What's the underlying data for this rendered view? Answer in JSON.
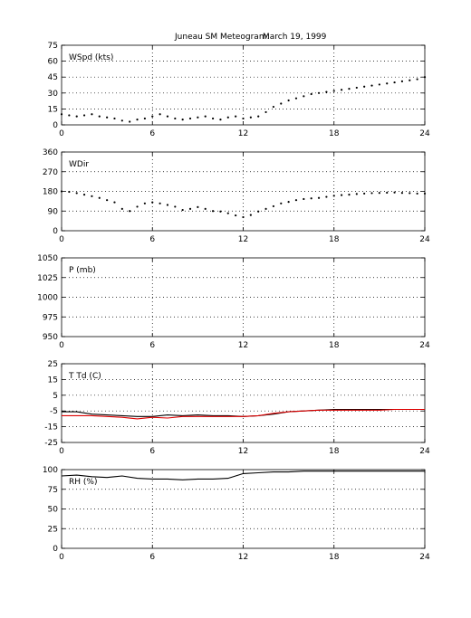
{
  "title": {
    "station": "Juneau SM Meteogram:",
    "date": "March 19, 1999"
  },
  "chart_data": [
    {
      "type": "scatter",
      "panel_label": "WSpd (kts)",
      "xlim": [
        0,
        24
      ],
      "ylim": [
        0,
        75
      ],
      "xticks": [
        0,
        6,
        12,
        18,
        24
      ],
      "yticks": [
        0,
        15,
        30,
        45,
        60,
        75
      ],
      "grid": true,
      "series": [
        {
          "color": "#000000",
          "points": [
            [
              0,
              10
            ],
            [
              0.5,
              9
            ],
            [
              1,
              8
            ],
            [
              1.5,
              9
            ],
            [
              2,
              10
            ],
            [
              2.5,
              8
            ],
            [
              3,
              7
            ],
            [
              3.5,
              6
            ],
            [
              4,
              4
            ],
            [
              4.5,
              3
            ],
            [
              5,
              5
            ],
            [
              5.5,
              6
            ],
            [
              6,
              8
            ],
            [
              6.5,
              10
            ],
            [
              7,
              8
            ],
            [
              7.5,
              6
            ],
            [
              8,
              5
            ],
            [
              8.5,
              6
            ],
            [
              9,
              7
            ],
            [
              9.5,
              8
            ],
            [
              10,
              6
            ],
            [
              10.5,
              5
            ],
            [
              11,
              7
            ],
            [
              11.5,
              8
            ],
            [
              12,
              6
            ],
            [
              12.5,
              7
            ],
            [
              13,
              8
            ],
            [
              13.5,
              12
            ],
            [
              14,
              17
            ],
            [
              14.5,
              20
            ],
            [
              15,
              23
            ],
            [
              15.5,
              25
            ],
            [
              16,
              27
            ],
            [
              16.5,
              29
            ],
            [
              17,
              30
            ],
            [
              17.5,
              31
            ],
            [
              18,
              32
            ],
            [
              18.5,
              33
            ],
            [
              19,
              34
            ],
            [
              19.5,
              35
            ],
            [
              20,
              36
            ],
            [
              20.5,
              37
            ],
            [
              21,
              38
            ],
            [
              21.5,
              39
            ],
            [
              22,
              40
            ],
            [
              22.5,
              41
            ],
            [
              23,
              42
            ],
            [
              23.5,
              43
            ],
            [
              24,
              45
            ]
          ]
        }
      ]
    },
    {
      "type": "scatter",
      "panel_label": "WDir",
      "xlim": [
        0,
        24
      ],
      "ylim": [
        0,
        360
      ],
      "xticks": [
        0,
        6,
        12,
        18,
        24
      ],
      "yticks": [
        0,
        90,
        180,
        270,
        360
      ],
      "grid": true,
      "series": [
        {
          "color": "#000000",
          "points": [
            [
              0,
              180
            ],
            [
              0.5,
              178
            ],
            [
              1,
              172
            ],
            [
              1.5,
              165
            ],
            [
              2,
              158
            ],
            [
              2.5,
              150
            ],
            [
              3,
              140
            ],
            [
              3.5,
              130
            ],
            [
              4,
              100
            ],
            [
              4.5,
              90
            ],
            [
              5,
              110
            ],
            [
              5.5,
              125
            ],
            [
              6,
              130
            ],
            [
              6.5,
              125
            ],
            [
              7,
              118
            ],
            [
              7.5,
              110
            ],
            [
              8,
              95
            ],
            [
              8.5,
              100
            ],
            [
              9,
              108
            ],
            [
              9.5,
              100
            ],
            [
              10,
              90
            ],
            [
              10.5,
              88
            ],
            [
              11,
              80
            ],
            [
              11.5,
              70
            ],
            [
              12,
              62
            ],
            [
              12.5,
              72
            ],
            [
              13,
              88
            ],
            [
              13.5,
              100
            ],
            [
              14,
              112
            ],
            [
              14.5,
              125
            ],
            [
              15,
              132
            ],
            [
              15.5,
              140
            ],
            [
              16,
              145
            ],
            [
              16.5,
              148
            ],
            [
              17,
              150
            ],
            [
              17.5,
              155
            ],
            [
              18,
              160
            ],
            [
              18.5,
              163
            ],
            [
              19,
              165
            ],
            [
              19.5,
              168
            ],
            [
              20,
              170
            ],
            [
              20.5,
              172
            ],
            [
              21,
              173
            ],
            [
              21.5,
              174
            ],
            [
              22,
              175
            ],
            [
              22.5,
              173
            ],
            [
              23,
              172
            ],
            [
              23.5,
              170
            ],
            [
              24,
              170
            ]
          ]
        }
      ]
    },
    {
      "type": "line",
      "panel_label": "P (mb)",
      "xlim": [
        0,
        24
      ],
      "ylim": [
        950,
        1050
      ],
      "xticks": [
        0,
        6,
        12,
        18,
        24
      ],
      "yticks": [
        950,
        975,
        1000,
        1025,
        1050
      ],
      "grid": true,
      "series": []
    },
    {
      "type": "line",
      "panel_label": "T Td (C)",
      "xlim": [
        0,
        24
      ],
      "ylim": [
        -25,
        25
      ],
      "xticks": [
        0,
        6,
        12,
        18,
        24
      ],
      "yticks": [
        -25,
        -15,
        -5,
        5,
        15,
        25
      ],
      "grid": true,
      "series": [
        {
          "color": "#000000",
          "points": [
            [
              0,
              -5.5
            ],
            [
              1,
              -5.5
            ],
            [
              2,
              -7
            ],
            [
              3,
              -7.5
            ],
            [
              4,
              -8
            ],
            [
              5,
              -8.5
            ],
            [
              6,
              -8.5
            ],
            [
              7,
              -7.5
            ],
            [
              8,
              -8
            ],
            [
              9,
              -7.5
            ],
            [
              10,
              -8
            ],
            [
              11,
              -8
            ],
            [
              12,
              -8.5
            ],
            [
              13,
              -8
            ],
            [
              14,
              -7
            ],
            [
              15,
              -5.5
            ],
            [
              16,
              -5
            ],
            [
              17,
              -4.5
            ],
            [
              18,
              -4
            ],
            [
              19,
              -4
            ],
            [
              20,
              -4
            ],
            [
              21,
              -4
            ],
            [
              22,
              -4
            ],
            [
              23,
              -4
            ],
            [
              24,
              -4
            ]
          ]
        },
        {
          "color": "#dd0000",
          "points": [
            [
              0,
              -8
            ],
            [
              1,
              -8
            ],
            [
              2,
              -8
            ],
            [
              3,
              -8.5
            ],
            [
              4,
              -9
            ],
            [
              5,
              -10
            ],
            [
              6,
              -9
            ],
            [
              7,
              -9.5
            ],
            [
              8,
              -8.5
            ],
            [
              9,
              -8.5
            ],
            [
              10,
              -8.5
            ],
            [
              11,
              -8.5
            ],
            [
              12,
              -8.5
            ],
            [
              13,
              -8
            ],
            [
              14,
              -6.5
            ],
            [
              15,
              -5.5
            ],
            [
              16,
              -5
            ],
            [
              17,
              -4.5
            ],
            [
              18,
              -4.5
            ],
            [
              19,
              -4.5
            ],
            [
              20,
              -4.5
            ],
            [
              21,
              -4.5
            ],
            [
              22,
              -4
            ],
            [
              23,
              -4
            ],
            [
              24,
              -4
            ]
          ]
        }
      ]
    },
    {
      "type": "line",
      "panel_label": "RH (%)",
      "xlim": [
        0,
        24
      ],
      "ylim": [
        0,
        100
      ],
      "xticks": [
        0,
        6,
        12,
        18,
        24
      ],
      "yticks": [
        0,
        25,
        50,
        75,
        100
      ],
      "grid": true,
      "series": [
        {
          "color": "#000000",
          "points": [
            [
              0,
              92
            ],
            [
              1,
              93
            ],
            [
              2,
              91
            ],
            [
              3,
              90
            ],
            [
              4,
              92
            ],
            [
              5,
              89
            ],
            [
              6,
              88
            ],
            [
              7,
              88
            ],
            [
              8,
              87
            ],
            [
              9,
              88
            ],
            [
              10,
              88
            ],
            [
              11,
              89
            ],
            [
              12,
              95
            ],
            [
              13,
              96
            ],
            [
              14,
              97
            ],
            [
              15,
              97
            ],
            [
              16,
              98
            ],
            [
              17,
              98
            ],
            [
              18,
              98
            ],
            [
              19,
              98
            ],
            [
              20,
              98
            ],
            [
              21,
              98
            ],
            [
              22,
              98
            ],
            [
              23,
              98
            ],
            [
              24,
              98
            ]
          ]
        }
      ]
    }
  ]
}
